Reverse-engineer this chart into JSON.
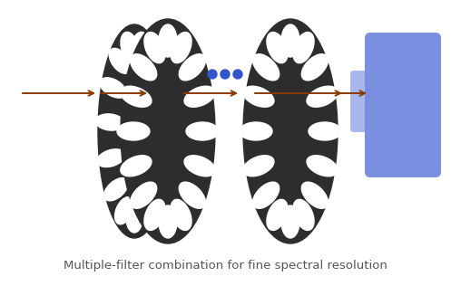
{
  "background_color": "#ffffff",
  "caption": "Multiple-filter combination for fine spectral resolution",
  "caption_fontsize": 9.5,
  "caption_color": "#555555",
  "wheel_color": "#2d2d2d",
  "hole_color": "#ffffff",
  "arrow_color": "#8B3A00",
  "dots_color": "#3355cc",
  "camera_body_color": "#7B8FE0",
  "camera_body_light_color": "#A8B8EC",
  "fig_w": 4.97,
  "fig_h": 3.16,
  "dpi": 100
}
